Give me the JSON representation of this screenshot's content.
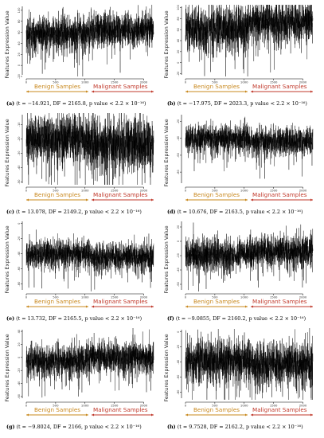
{
  "common": {
    "ylabel": "Features Expression Value",
    "benign_label": "Benign Samples",
    "malignant_label": "Malignant Samples",
    "benign_color": "#c8881e",
    "malignant_color": "#c0392b",
    "line_color": "#000000"
  },
  "chart_data": [
    {
      "type": "line",
      "panel": "a",
      "caption_letter": "(a)",
      "caption_stats": "(t = −14.921, DF = 2165.8, p value < 2.2 × 10⁻¹⁶)",
      "xticks": [
        "0",
        "500",
        "1000",
        "1500",
        "2000"
      ],
      "yticks": [
        "-20",
        "0",
        "20",
        "40",
        "60",
        "80",
        "100"
      ],
      "n_points": 2170,
      "split_index": 1085,
      "benign": {
        "mean": 58,
        "sd": 15
      },
      "malignant": {
        "mean": 64,
        "sd": 15
      },
      "ylim": [
        -20,
        110
      ]
    },
    {
      "type": "line",
      "panel": "b",
      "caption_letter": "(b)",
      "caption_stats": "(t = −17.975, DF = 2023.3, p value < 2.2 × 10⁻¹⁶)",
      "xticks": [
        "0",
        "500",
        "1000",
        "1500",
        "2000"
      ],
      "yticks": [
        "-20",
        "0",
        "20",
        "40",
        "60",
        "80",
        "100"
      ],
      "n_points": 2170,
      "split_index": 1085,
      "benign": {
        "mean": 62,
        "sd": 20
      },
      "malignant": {
        "mean": 74,
        "sd": 18
      },
      "ylim": [
        -25,
        105
      ]
    },
    {
      "type": "line",
      "panel": "c",
      "caption_letter": "(c)",
      "caption_stats": "(t = 13.078, DF = 2149.2, p value < 2.2 × 10⁻¹⁶)",
      "xticks": [
        "0",
        "500",
        "1000",
        "1500",
        "2000"
      ],
      "yticks": [
        "-50",
        "-40",
        "-30",
        "-20",
        "-10"
      ],
      "n_points": 2170,
      "split_index": 1085,
      "benign": {
        "mean": -20,
        "sd": 8
      },
      "malignant": {
        "mean": -24,
        "sd": 9
      },
      "ylim": [
        -52,
        -2
      ]
    },
    {
      "type": "line",
      "panel": "d",
      "caption_letter": "(d)",
      "caption_stats": "(t = 10.676, DF = 2163.5, p value < 2.2 × 10⁻¹⁶)",
      "xticks": [
        "0",
        "500",
        "1000",
        "1500",
        "2000"
      ],
      "yticks": [
        "-80",
        "-60",
        "-40",
        "-20"
      ],
      "n_points": 2170,
      "split_index": 1085,
      "benign": {
        "mean": -40,
        "sd": 8
      },
      "malignant": {
        "mean": -44,
        "sd": 8
      },
      "ylim": [
        -95,
        -10
      ]
    },
    {
      "type": "line",
      "panel": "e",
      "caption_letter": "(e)",
      "caption_stats": "(t = 13.732, DF = 2165.5, p value < 2.2 × 10⁻¹⁶)",
      "xticks": [
        "0",
        "500",
        "1000",
        "1500",
        "2000"
      ],
      "yticks": [
        "-80",
        "-60",
        "-40",
        "-20",
        "0"
      ],
      "n_points": 2170,
      "split_index": 1085,
      "benign": {
        "mean": -40,
        "sd": 9
      },
      "malignant": {
        "mean": -44,
        "sd": 9
      },
      "ylim": [
        -90,
        5
      ]
    },
    {
      "type": "line",
      "panel": "f",
      "caption_letter": "(f)",
      "caption_stats": "(t = −9.0855, DF = 2160.2, p value < 2.2 × 10⁻¹⁶)",
      "xticks": [
        "0",
        "500",
        "1000",
        "1500",
        "2000"
      ],
      "yticks": [
        "-60",
        "-40",
        "-20",
        "0",
        "20"
      ],
      "n_points": 2170,
      "split_index": 1085,
      "benign": {
        "mean": -18,
        "sd": 11
      },
      "malignant": {
        "mean": -14,
        "sd": 11
      },
      "ylim": [
        -70,
        30
      ]
    },
    {
      "type": "line",
      "panel": "g",
      "caption_letter": "(g)",
      "caption_stats": "(t = −9.8024, DF = 2166, p value < 2.2 × 10⁻¹⁶)",
      "xticks": [
        "0",
        "500",
        "1000",
        "1500",
        "2000"
      ],
      "yticks": [
        "-60",
        "-40",
        "-20",
        "0",
        "20",
        "40"
      ],
      "n_points": 2170,
      "split_index": 1085,
      "benign": {
        "mean": -5,
        "sd": 12
      },
      "malignant": {
        "mean": 0,
        "sd": 12
      },
      "ylim": [
        -65,
        45
      ]
    },
    {
      "type": "line",
      "panel": "h",
      "caption_letter": "(h)",
      "caption_stats": "(t = 9.7528, DF = 2162.2, p value < 2.2 × 10⁻¹⁶)",
      "xticks": [
        "0",
        "500",
        "1000",
        "1500",
        "2000"
      ],
      "yticks": [
        "-80",
        "-60",
        "-40",
        "-20",
        "0"
      ],
      "n_points": 2170,
      "split_index": 1085,
      "benign": {
        "mean": -38,
        "sd": 14
      },
      "malignant": {
        "mean": -42,
        "sd": 14
      },
      "ylim": [
        -90,
        5
      ]
    }
  ]
}
